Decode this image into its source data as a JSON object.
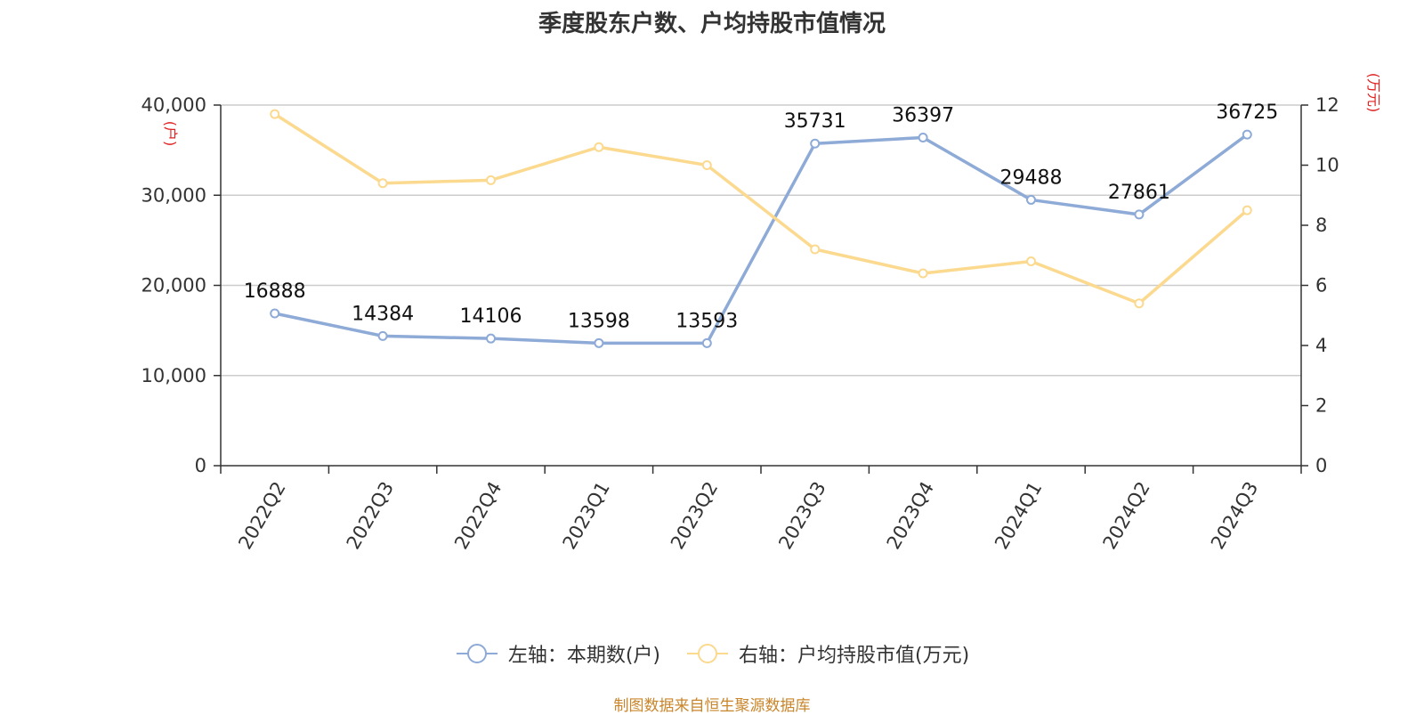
{
  "source": "制图数据来自恒生聚源数据库",
  "chart_data": {
    "type": "line",
    "title": "季度股东户数、户均持股市值情况",
    "categories": [
      "2022Q2",
      "2022Q3",
      "2022Q4",
      "2023Q1",
      "2023Q2",
      "2023Q3",
      "2023Q4",
      "2024Q1",
      "2024Q2",
      "2024Q3"
    ],
    "left_axis": {
      "unit": "(户)",
      "ylim": [
        0,
        40000
      ],
      "ticks": [
        "0",
        "10,000",
        "20,000",
        "30,000",
        "40,000"
      ],
      "tick_values": [
        0,
        10000,
        20000,
        30000,
        40000
      ]
    },
    "right_axis": {
      "unit": "(万元)",
      "ylim": [
        0,
        12
      ],
      "ticks": [
        "0",
        "2",
        "4",
        "6",
        "8",
        "10",
        "12"
      ],
      "tick_values": [
        0,
        2,
        4,
        6,
        8,
        10,
        12
      ]
    },
    "grid": true,
    "legend_position": "bottom",
    "series": [
      {
        "name": "左轴：本期数(户)",
        "axis": "left",
        "color": "#8eaad6",
        "values": [
          16888,
          14384,
          14106,
          13598,
          13593,
          35731,
          36397,
          29488,
          27861,
          36725
        ],
        "labels": [
          "16888",
          "14384",
          "14106",
          "13598",
          "13593",
          "35731",
          "36397",
          "29488",
          "27861",
          "36725"
        ]
      },
      {
        "name": "右轴：户均持股市值(万元)",
        "axis": "right",
        "color": "#fbd98e",
        "values": [
          11.7,
          9.4,
          9.5,
          10.6,
          10.0,
          7.2,
          6.4,
          6.8,
          5.4,
          8.5
        ]
      }
    ]
  }
}
